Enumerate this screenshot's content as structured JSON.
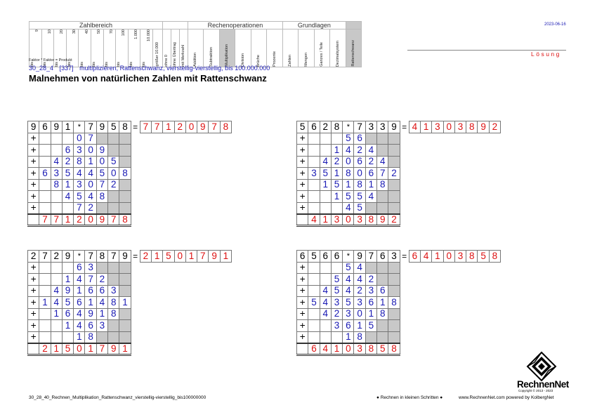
{
  "header": {
    "groups": {
      "zahlbereich": "Zahlbereich",
      "rechenoperationen": "Rechenoperationen",
      "grundlagen": "Grundlagen"
    },
    "zahlbereich_cols": [
      {
        "top": "9",
        "bottom": "bis"
      },
      {
        "top": "10",
        "bottom": "bis"
      },
      {
        "top": "20",
        "bottom": "bis"
      },
      {
        "top": "30",
        "bottom": "bis"
      },
      {
        "top": "40",
        "bottom": "bis"
      },
      {
        "top": "50",
        "bottom": "bis"
      },
      {
        "top": "70",
        "bottom": "bis"
      },
      {
        "top": "100",
        "bottom": "bis"
      },
      {
        "top": "1.000",
        "bottom": "bis"
      },
      {
        "top": "10.000",
        "bottom": "bis"
      },
      {
        "top": "",
        "bottom": "größer 10.000"
      }
    ],
    "uebertrag_cols": [
      "ohne 0",
      "ohne Übertrag",
      "mit Merkzahl"
    ],
    "operation_cols": [
      "Addition",
      "Subtraktion",
      "Multiplikation",
      "Division",
      "Brüche",
      "Prozente"
    ],
    "grundlagen_cols": [
      "Zahlen",
      "Mengen",
      "Ganzes / Teile",
      "Dezimalsystem",
      "Rattenschwanz"
    ],
    "date": "2023-06-16",
    "loesung": "Lösung"
  },
  "legend": "Faktor * Faktor = Produkt",
  "code": {
    "id": "30_28_4",
    "num": "[337]",
    "desc": "multiplizieren, Rattenschwanz, vierstellig-vierstellig, bis 100.000.000"
  },
  "title": "Malnehmen von natürlichen Zahlen mit Rattenschwanz",
  "problems": [
    {
      "factor_a": [
        "9",
        "6",
        "9",
        "1"
      ],
      "op": "*",
      "factor_b": [
        "7",
        "9",
        "5",
        "8"
      ],
      "eq": "=",
      "result": [
        "7",
        "7",
        "1",
        "2",
        "0",
        "9",
        "7",
        "8"
      ],
      "rows": [
        [
          "",
          "",
          "",
          "0",
          "7",
          "",
          ""
        ],
        [
          "",
          "",
          "6",
          "3",
          "0",
          "9",
          ""
        ],
        [
          "",
          "4",
          "2",
          "8",
          "1",
          "0",
          "5"
        ],
        [
          "6",
          "3",
          "5",
          "4",
          "4",
          "5",
          "0",
          "8"
        ],
        [
          "",
          "8",
          "1",
          "3",
          "0",
          "7",
          "2",
          ""
        ],
        [
          "",
          "",
          "4",
          "5",
          "4",
          "8",
          "",
          ""
        ],
        [
          "",
          "",
          "",
          "7",
          "2",
          "",
          "",
          ""
        ]
      ],
      "total": [
        "7",
        "7",
        "1",
        "2",
        "0",
        "9",
        "7",
        "8"
      ]
    },
    {
      "factor_a": [
        "5",
        "6",
        "2",
        "8"
      ],
      "op": "*",
      "factor_b": [
        "7",
        "3",
        "3",
        "9"
      ],
      "eq": "=",
      "result": [
        "4",
        "1",
        "3",
        "0",
        "3",
        "8",
        "9",
        "2"
      ],
      "rows": [
        [
          "",
          "",
          "",
          "5",
          "6",
          "",
          ""
        ],
        [
          "",
          "",
          "1",
          "4",
          "2",
          "4",
          ""
        ],
        [
          "",
          "4",
          "2",
          "0",
          "6",
          "2",
          "4"
        ],
        [
          "3",
          "5",
          "1",
          "8",
          "0",
          "6",
          "7",
          "2"
        ],
        [
          "",
          "1",
          "5",
          "1",
          "8",
          "1",
          "8",
          ""
        ],
        [
          "",
          "",
          "1",
          "5",
          "5",
          "4",
          "",
          ""
        ],
        [
          "",
          "",
          "",
          "4",
          "5",
          "",
          "",
          ""
        ]
      ],
      "total": [
        "4",
        "1",
        "3",
        "0",
        "3",
        "8",
        "9",
        "2"
      ]
    },
    {
      "factor_a": [
        "2",
        "7",
        "2",
        "9"
      ],
      "op": "*",
      "factor_b": [
        "7",
        "8",
        "7",
        "9"
      ],
      "eq": "=",
      "result": [
        "2",
        "1",
        "5",
        "0",
        "1",
        "7",
        "9",
        "1"
      ],
      "rows": [
        [
          "",
          "",
          "",
          "6",
          "3",
          "",
          ""
        ],
        [
          "",
          "",
          "1",
          "4",
          "7",
          "2",
          ""
        ],
        [
          "",
          "4",
          "9",
          "1",
          "6",
          "6",
          "3"
        ],
        [
          "1",
          "4",
          "5",
          "6",
          "1",
          "4",
          "8",
          "1"
        ],
        [
          "",
          "1",
          "6",
          "4",
          "9",
          "1",
          "8",
          ""
        ],
        [
          "",
          "",
          "1",
          "4",
          "6",
          "3",
          "",
          ""
        ],
        [
          "",
          "",
          "",
          "1",
          "8",
          "",
          "",
          ""
        ]
      ],
      "total": [
        "2",
        "1",
        "5",
        "0",
        "1",
        "7",
        "9",
        "1"
      ]
    },
    {
      "factor_a": [
        "6",
        "5",
        "6",
        "6"
      ],
      "op": "*",
      "factor_b": [
        "9",
        "7",
        "6",
        "3"
      ],
      "eq": "=",
      "result": [
        "6",
        "4",
        "1",
        "0",
        "3",
        "8",
        "5",
        "8"
      ],
      "rows": [
        [
          "",
          "",
          "",
          "5",
          "4",
          "",
          ""
        ],
        [
          "",
          "",
          "5",
          "4",
          "4",
          "2",
          ""
        ],
        [
          "",
          "4",
          "5",
          "4",
          "2",
          "3",
          "6"
        ],
        [
          "5",
          "4",
          "3",
          "5",
          "3",
          "6",
          "1",
          "8"
        ],
        [
          "",
          "4",
          "2",
          "3",
          "0",
          "1",
          "8",
          ""
        ],
        [
          "",
          "",
          "3",
          "6",
          "1",
          "5",
          "",
          ""
        ],
        [
          "",
          "",
          "",
          "1",
          "8",
          "",
          "",
          ""
        ]
      ],
      "total": [
        "6",
        "4",
        "1",
        "0",
        "3",
        "8",
        "5",
        "8"
      ]
    }
  ],
  "plus_sign": "+",
  "footer": {
    "left": "30_28_40_Rechnen_Multiplikation_Rattenschwanz_vierstellig-vierstellig_bis100000000",
    "mid": "● Rechnen in kleinen Schritten ●",
    "right": "www.RechnenNet.com powered by KolbergNet",
    "logo_text": "RechnenNet",
    "copyright": "Copyright © 2013 - 2023"
  }
}
